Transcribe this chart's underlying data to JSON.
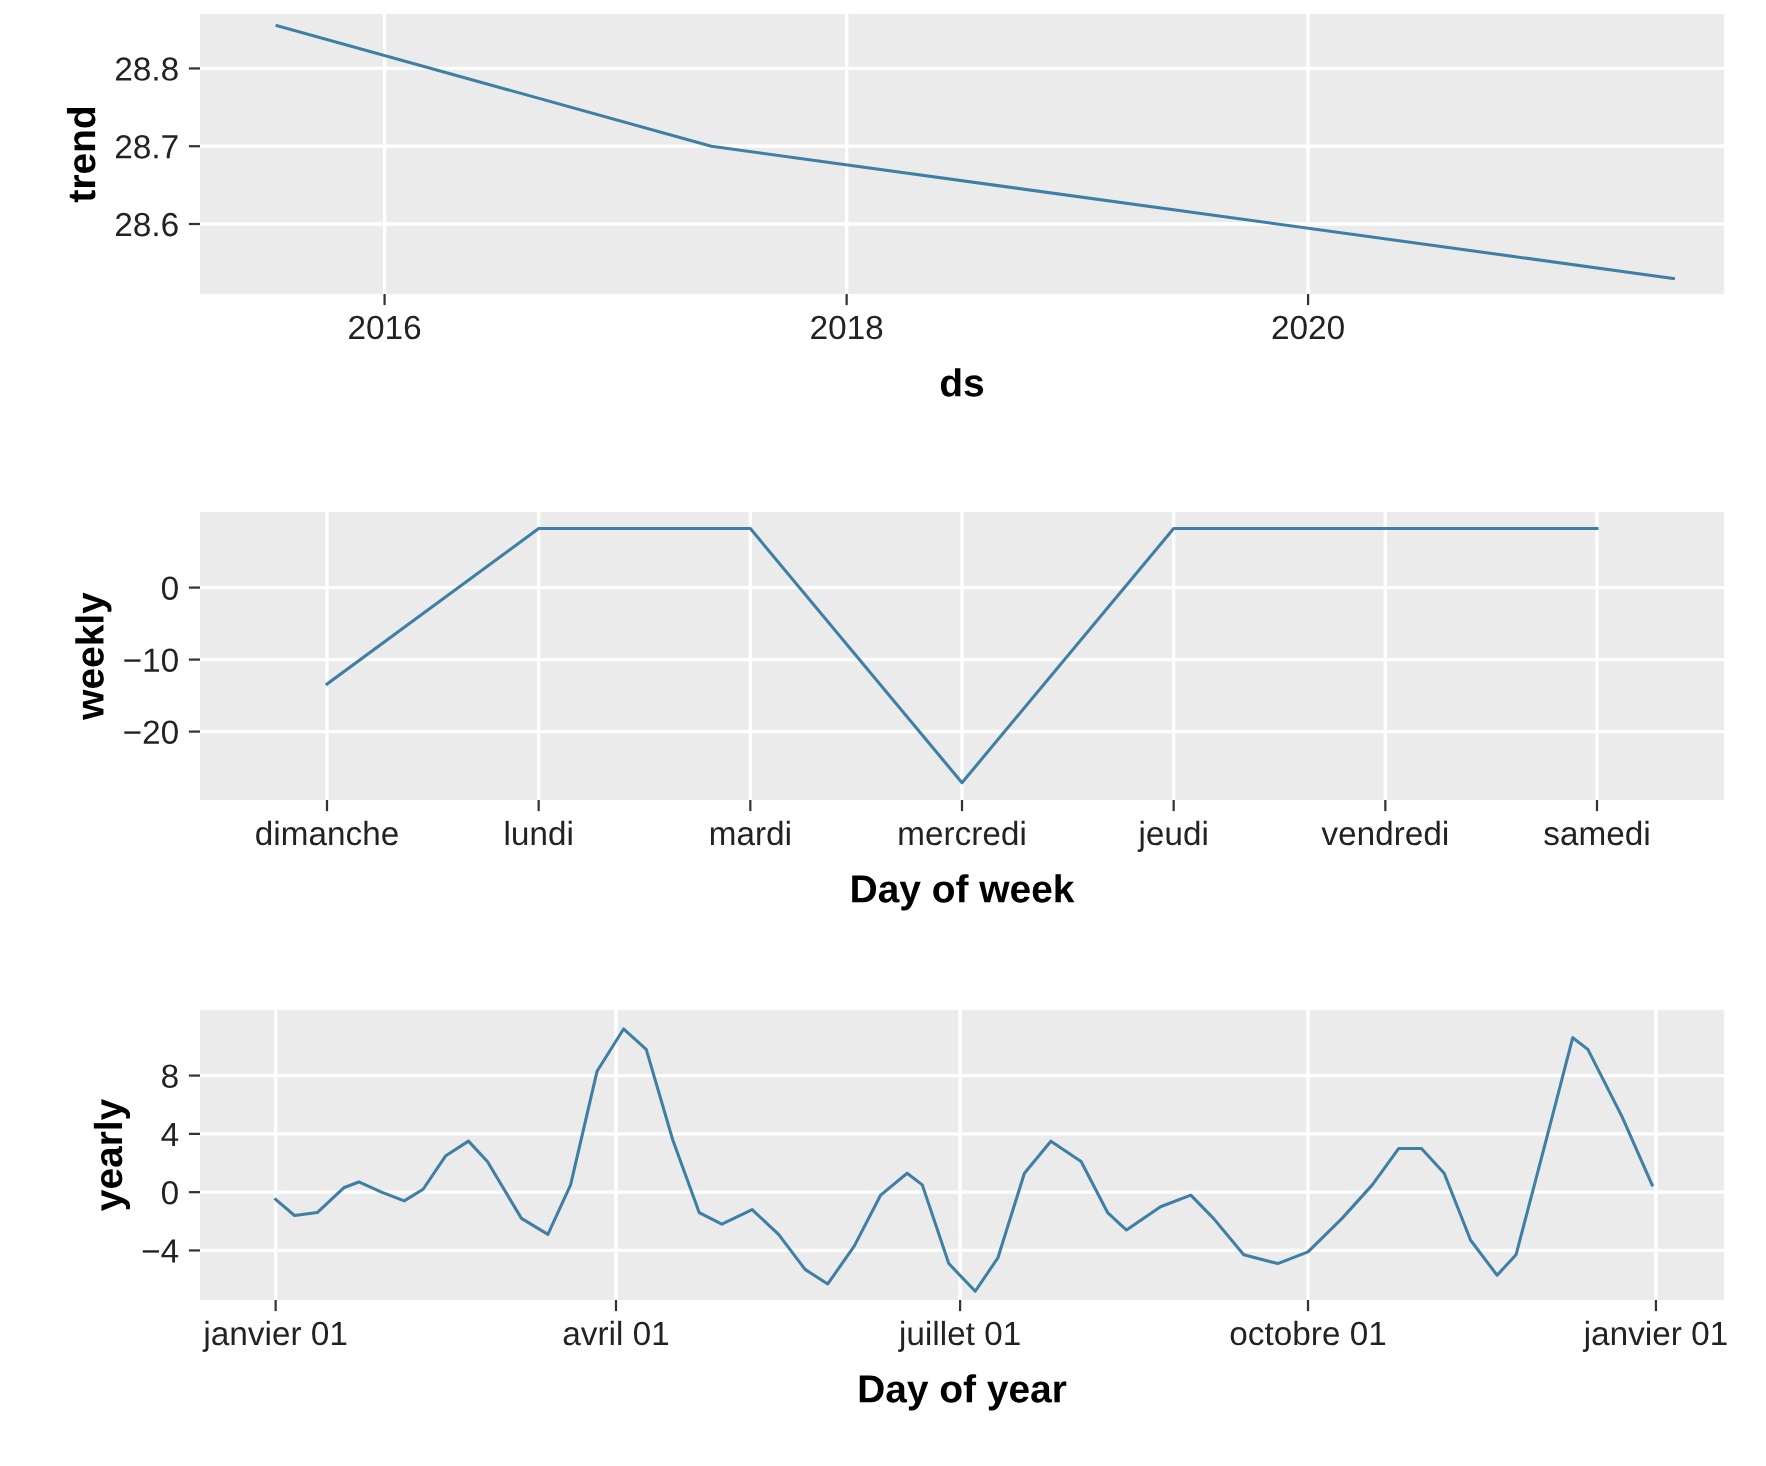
{
  "chart_data": [
    {
      "type": "line",
      "ylabel": "trend",
      "xlabel": "ds",
      "x": [
        "2015-07-15",
        "2017-06-01",
        "2021-08-01"
      ],
      "series": [
        {
          "color": "#3f7fa6",
          "values": [
            28.855,
            28.7,
            28.53
          ]
        }
      ],
      "xlim": [
        "2015-03-15",
        "2021-10-20"
      ],
      "xticks": [
        {
          "value": "2016-01-01",
          "label": "2016"
        },
        {
          "value": "2018-01-01",
          "label": "2018"
        },
        {
          "value": "2020-01-01",
          "label": "2020"
        }
      ],
      "ylim": [
        28.51,
        28.87
      ],
      "yticks": [
        28.6,
        28.7,
        28.8
      ],
      "grid": true
    },
    {
      "type": "line",
      "ylabel": "weekly",
      "xlabel": "Day of week",
      "categories": [
        "dimanche",
        "lundi",
        "mardi",
        "mercredi",
        "jeudi",
        "vendredi",
        "samedi"
      ],
      "series": [
        {
          "color": "#3f7fa6",
          "values": [
            -13.4,
            8.2,
            8.2,
            -27.1,
            8.2,
            8.2,
            8.2
          ]
        }
      ],
      "ylim": [
        -29.5,
        10.5
      ],
      "yticks": [
        {
          "value": -20,
          "label": "−20"
        },
        {
          "value": -10,
          "label": "−10"
        },
        0
      ],
      "grid": true
    },
    {
      "type": "line",
      "ylabel": "yearly",
      "xlabel": "Day of year",
      "x": [
        "2017-01-01",
        "2017-01-06",
        "2017-01-12",
        "2017-01-19",
        "2017-01-23",
        "2017-01-29",
        "2017-02-04",
        "2017-02-09",
        "2017-02-15",
        "2017-02-21",
        "2017-02-26",
        "2017-03-07",
        "2017-03-14",
        "2017-03-20",
        "2017-03-27",
        "2017-04-03",
        "2017-04-09",
        "2017-04-16",
        "2017-04-23",
        "2017-04-29",
        "2017-05-07",
        "2017-05-14",
        "2017-05-21",
        "2017-05-27",
        "2017-06-03",
        "2017-06-10",
        "2017-06-17",
        "2017-06-21",
        "2017-06-28",
        "2017-07-05",
        "2017-07-11",
        "2017-07-18",
        "2017-07-25",
        "2017-08-02",
        "2017-08-09",
        "2017-08-14",
        "2017-08-23",
        "2017-08-31",
        "2017-09-06",
        "2017-09-14",
        "2017-09-23",
        "2017-10-01",
        "2017-10-10",
        "2017-10-18",
        "2017-10-25",
        "2017-10-31",
        "2017-11-06",
        "2017-11-13",
        "2017-11-20",
        "2017-11-25",
        "2017-12-03",
        "2017-12-10",
        "2017-12-14",
        "2017-12-23",
        "2017-12-31"
      ],
      "series": [
        {
          "color": "#3f7fa6",
          "values": [
            -0.5,
            -1.6,
            -1.4,
            0.3,
            0.7,
            0,
            -0.6,
            0.2,
            2.5,
            3.5,
            2.1,
            -1.8,
            -2.9,
            0.5,
            8.3,
            11.2,
            9.8,
            3.6,
            -1.4,
            -2.2,
            -1.2,
            -2.9,
            -5.3,
            -6.3,
            -3.7,
            -0.2,
            1.3,
            0.5,
            -4.9,
            -6.8,
            -4.5,
            1.3,
            3.5,
            2.1,
            -1.4,
            -2.6,
            -1.0,
            -0.2,
            -1.8,
            -4.3,
            -4.9,
            -4.1,
            -1.8,
            0.5,
            3.0,
            3.0,
            1.3,
            -3.3,
            -5.7,
            -4.3,
            3.6,
            10.6,
            9.8,
            5.2,
            0.5
          ]
        }
      ],
      "xlim": [
        "2016-12-12",
        "2018-01-19"
      ],
      "xticks": [
        {
          "value": "2017-01-01",
          "label": "janvier 01"
        },
        {
          "value": "2017-04-01",
          "label": "avril 01"
        },
        {
          "value": "2017-07-01",
          "label": "juillet 01"
        },
        {
          "value": "2017-10-01",
          "label": "octobre 01"
        },
        {
          "value": "2018-01-01",
          "label": "janvier 01"
        }
      ],
      "ylim": [
        -7.4,
        12.5
      ],
      "yticks": [
        {
          "value": -4,
          "label": "−4"
        },
        0,
        4,
        8
      ],
      "grid": true
    }
  ]
}
